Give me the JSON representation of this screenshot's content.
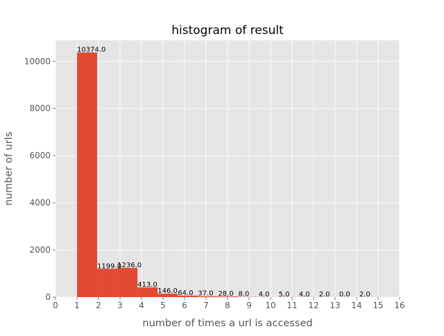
{
  "chart_data": {
    "type": "bar",
    "title": "histogram of result",
    "xlabel": "number of times a url is accessed",
    "ylabel": "number of urls",
    "xlim": [
      0,
      16
    ],
    "ylim": [
      0,
      10892
    ],
    "grid": true,
    "bar_color": "#E24A33",
    "background_color": "#E5E5E5",
    "grid_color": "#FFFFFF",
    "x_ticks": [
      0,
      1,
      2,
      3,
      4,
      5,
      6,
      7,
      8,
      9,
      10,
      11,
      12,
      13,
      14,
      15,
      16
    ],
    "y_ticks": [
      0,
      2000,
      4000,
      6000,
      8000,
      10000
    ],
    "bins": [
      {
        "start": 1.0,
        "end": 1.9375,
        "value": 10374.0,
        "label": "10374.0"
      },
      {
        "start": 1.9375,
        "end": 2.875,
        "value": 1199.0,
        "label": "1199.0"
      },
      {
        "start": 2.875,
        "end": 3.8125,
        "value": 1236.0,
        "label": "1236.0"
      },
      {
        "start": 3.8125,
        "end": 4.75,
        "value": 413.0,
        "label": "413.0"
      },
      {
        "start": 4.75,
        "end": 5.6875,
        "value": 146.0,
        "label": "146.0"
      },
      {
        "start": 5.6875,
        "end": 6.625,
        "value": 64.0,
        "label": "64.0"
      },
      {
        "start": 6.625,
        "end": 7.5625,
        "value": 37.0,
        "label": "37.0"
      },
      {
        "start": 7.5625,
        "end": 8.5,
        "value": 28.0,
        "label": "28.0"
      },
      {
        "start": 8.5,
        "end": 9.4375,
        "value": 8.0,
        "label": "8.0"
      },
      {
        "start": 9.4375,
        "end": 10.375,
        "value": 4.0,
        "label": "4.0"
      },
      {
        "start": 10.375,
        "end": 11.3125,
        "value": 5.0,
        "label": "5.0"
      },
      {
        "start": 11.3125,
        "end": 12.25,
        "value": 4.0,
        "label": "4.0"
      },
      {
        "start": 12.25,
        "end": 13.1875,
        "value": 2.0,
        "label": "2.0"
      },
      {
        "start": 13.1875,
        "end": 14.125,
        "value": 0.0,
        "label": "0.0"
      },
      {
        "start": 14.125,
        "end": 15.0625,
        "value": 2.0,
        "label": "2.0"
      },
      {
        "start": 15.0625,
        "end": 16.0,
        "value": 0.0,
        "label": ""
      }
    ]
  }
}
